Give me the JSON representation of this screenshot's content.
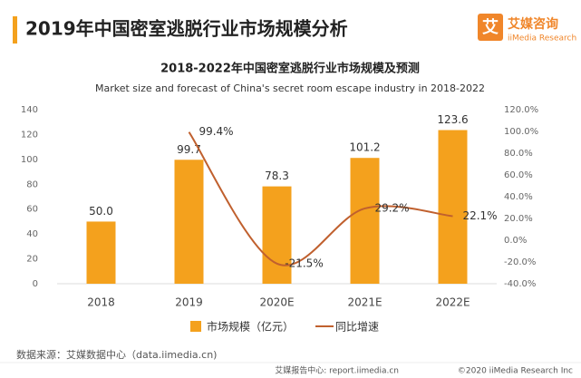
{
  "header": {
    "title": "2019年中国密室逃脱行业市场规模分析",
    "logo_icon": "艾",
    "logo_name": "艾媒咨询",
    "logo_sub": "iiMedia Research"
  },
  "chart_data": {
    "type": "combo",
    "title": "2018-2022年中国密室逃脱行业市场规模及预测",
    "subtitle": "Market size and forecast of China's secret room escape industry in 2018-2022",
    "categories": [
      "2018",
      "2019",
      "2020E",
      "2021E",
      "2022E"
    ],
    "series": [
      {
        "name": "市场规模（亿元）",
        "type": "bar",
        "color": "#f4a11d",
        "values": [
          50.0,
          99.7,
          78.3,
          101.2,
          123.6
        ],
        "value_labels": [
          "50.0",
          "99.7",
          "78.3",
          "101.2",
          "123.6"
        ]
      },
      {
        "name": "同比增速",
        "type": "line",
        "axis": "y2",
        "color": "#c0602e",
        "values": [
          null,
          99.4,
          -21.5,
          29.2,
          22.1
        ],
        "value_labels": [
          null,
          "99.4%",
          "-21.5%",
          "29.2%",
          "22.1%"
        ]
      }
    ],
    "ylim": [
      0,
      140
    ],
    "yticks": [
      0,
      20,
      40,
      60,
      80,
      100,
      120,
      140
    ],
    "y2lim": [
      -40,
      120
    ],
    "y2ticks": [
      {
        "value": -40,
        "label": "-40.0%"
      },
      {
        "value": -20,
        "label": "-20.0%"
      },
      {
        "value": 0,
        "label": "0.0%"
      },
      {
        "value": 20,
        "label": "20.0%"
      },
      {
        "value": 40,
        "label": "40.0%"
      },
      {
        "value": 60,
        "label": "60.0%"
      },
      {
        "value": 80,
        "label": "80.0%"
      },
      {
        "value": 100,
        "label": "100.0%"
      },
      {
        "value": 120,
        "label": "120.0%"
      }
    ],
    "legend": "bottom"
  },
  "source": "数据来源：艾媒数据中心（data.iimedia.cn)",
  "footer": {
    "site": "艾媒报告中心: report.iimedia.cn",
    "copyright": "©2020  iiMedia Research Inc"
  }
}
